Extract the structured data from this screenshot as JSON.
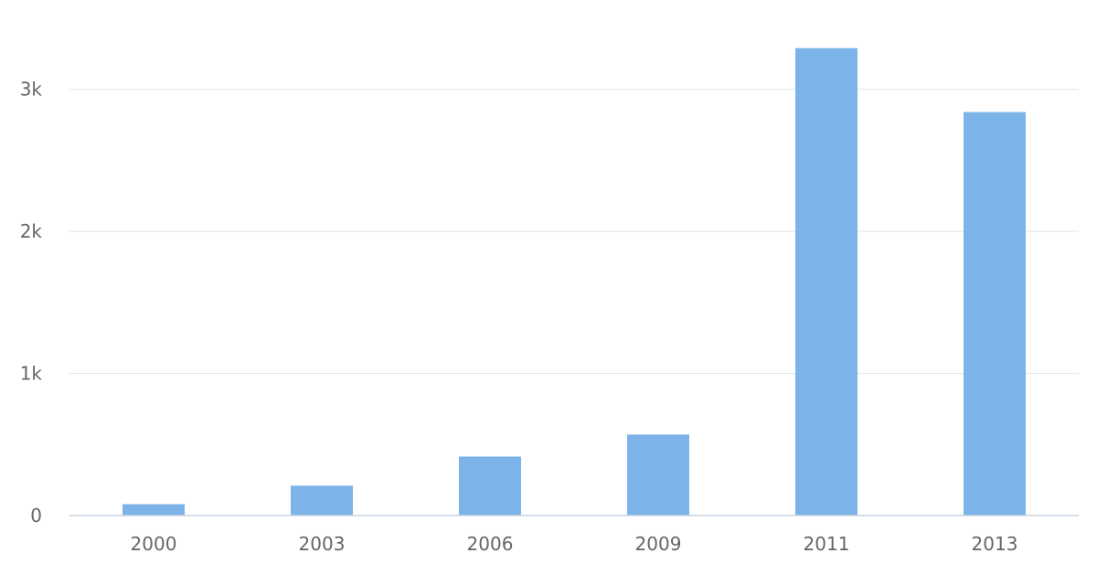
{
  "chart_data": {
    "type": "bar",
    "categories": [
      "2000",
      "2003",
      "2006",
      "2009",
      "2011",
      "2013"
    ],
    "values": [
      80,
      210,
      415,
      570,
      3290,
      2840
    ],
    "title": "",
    "xlabel": "",
    "ylabel": "",
    "ylim": [
      0,
      3500
    ],
    "yticks": [
      0,
      1000,
      2000,
      3000
    ],
    "ytick_labels": [
      "0",
      "1k",
      "2k",
      "3k"
    ],
    "grid": true,
    "legend": "none",
    "bar_color": "#7cb4ea"
  }
}
